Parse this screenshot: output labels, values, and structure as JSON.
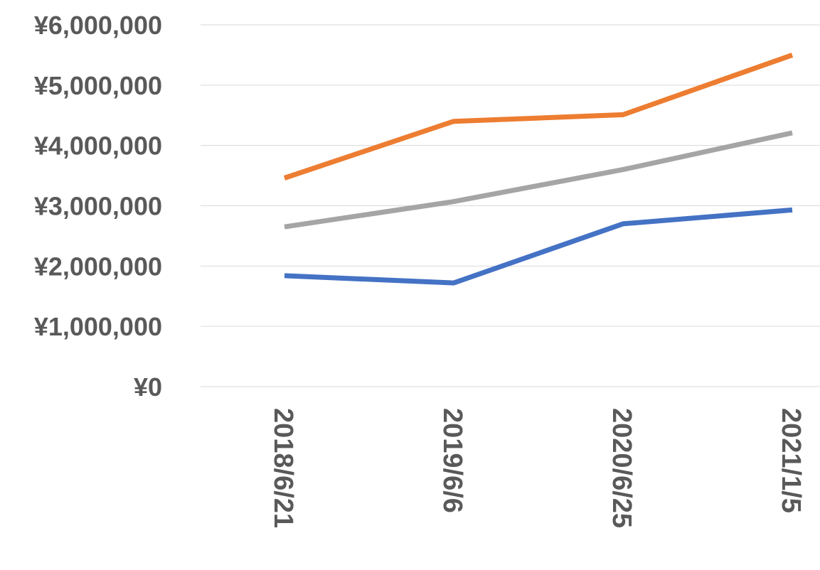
{
  "chart_data": {
    "type": "line",
    "title": "",
    "xlabel": "",
    "ylabel": "",
    "categories": [
      "2018/6/21",
      "2019/6/6",
      "2020/6/25",
      "2021/1/5"
    ],
    "y_ticks": [
      {
        "value": 0,
        "label": "¥0"
      },
      {
        "value": 1000000,
        "label": "¥1,000,000"
      },
      {
        "value": 2000000,
        "label": "¥2,000,000"
      },
      {
        "value": 3000000,
        "label": "¥3,000,000"
      },
      {
        "value": 4000000,
        "label": "¥4,000,000"
      },
      {
        "value": 5000000,
        "label": "¥5,000,000"
      },
      {
        "value": 6000000,
        "label": "¥6,000,000"
      }
    ],
    "ylim": [
      0,
      6000000
    ],
    "grid": true,
    "legend": "none",
    "series": [
      {
        "color": "#4472C4",
        "values": [
          1840000,
          1720000,
          2700000,
          2930000
        ]
      },
      {
        "color": "#ED7D31",
        "values": [
          3460000,
          4400000,
          4510000,
          5500000
        ]
      },
      {
        "color": "#A5A5A5",
        "values": [
          2650000,
          3070000,
          3600000,
          4210000
        ]
      }
    ]
  }
}
